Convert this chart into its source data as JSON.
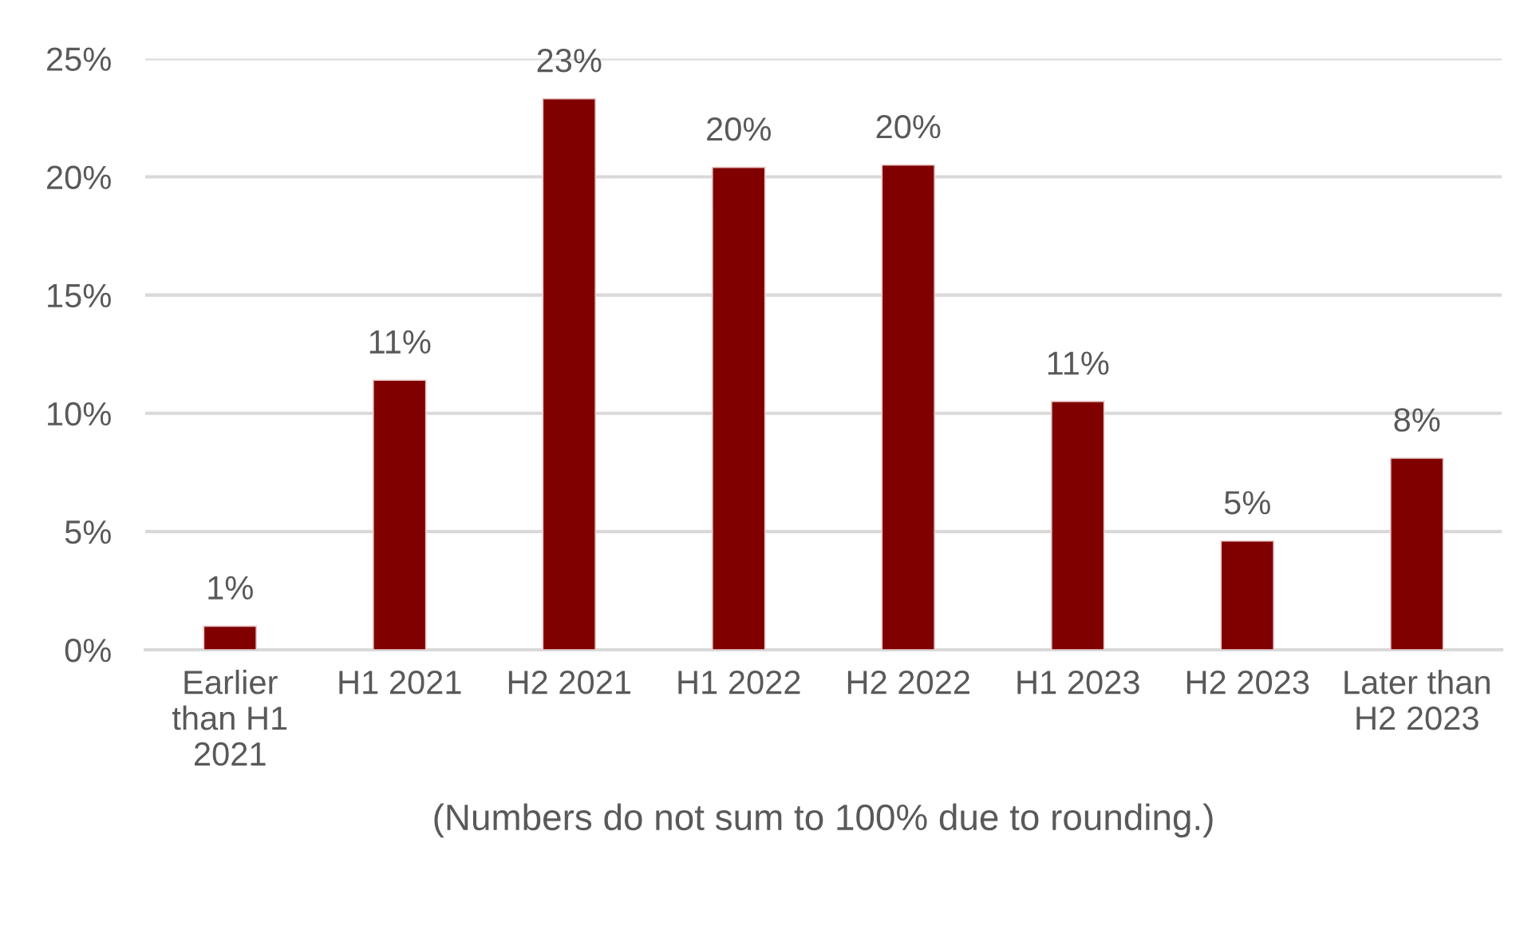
{
  "chart_data": {
    "type": "bar",
    "categories": [
      "Earlier\nthan H1\n2021",
      "H1 2021",
      "H2 2021",
      "H1 2022",
      "H2 2022",
      "H1 2023",
      "H2 2023",
      "Later than\nH2 2023"
    ],
    "values": [
      1.0,
      11.4,
      23.3,
      20.4,
      20.5,
      10.5,
      4.6,
      8.1
    ],
    "value_labels": [
      "1%",
      "11%",
      "23%",
      "20%",
      "20%",
      "11%",
      "5%",
      "8%"
    ],
    "color": "#800000",
    "xlabel": "(Numbers do not sum to 100% due to rounding.)",
    "ylim": [
      0,
      25
    ],
    "yticks": [
      {
        "value": 0,
        "label": "0%"
      },
      {
        "value": 5,
        "label": "5%"
      },
      {
        "value": 10,
        "label": "10%"
      },
      {
        "value": 15,
        "label": "15%"
      },
      {
        "value": 20,
        "label": "20%"
      },
      {
        "value": 25,
        "label": "25%"
      }
    ],
    "grid": "y"
  }
}
